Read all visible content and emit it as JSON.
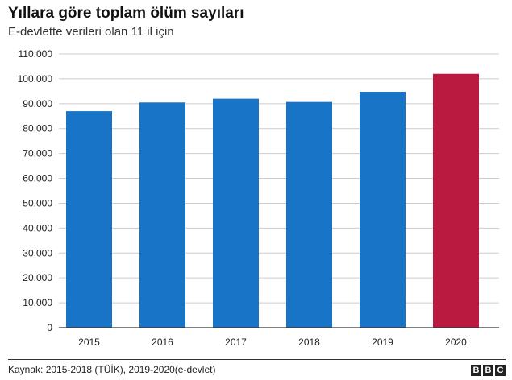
{
  "header": {
    "title": "Yıllara göre toplam ölüm sayıları",
    "subtitle": "E-devlette verileri olan 11 il için"
  },
  "footer": {
    "source": "Kaynak: 2015-2018 (TÜİK), 2019-2020(e-devlet)",
    "logo_letters": [
      "B",
      "B",
      "C"
    ]
  },
  "colors": {
    "default_bar": "#1874c6",
    "highlight_bar": "#bb1a40",
    "gridline": "#cccccc",
    "axis": "#333333"
  },
  "chart_data": {
    "type": "bar",
    "title": "Yıllara göre toplam ölüm sayıları",
    "subtitle": "E-devlette verileri olan 11 il için",
    "categories": [
      "2015",
      "2016",
      "2017",
      "2018",
      "2019",
      "2020"
    ],
    "values": [
      87000,
      90500,
      92000,
      90700,
      94800,
      102000
    ],
    "highlight": [
      "2020"
    ],
    "xlabel": "",
    "ylabel": "",
    "ylim": [
      0,
      110000
    ],
    "yticks": [
      {
        "value": 0,
        "label": "0"
      },
      {
        "value": 10000,
        "label": "10.000"
      },
      {
        "value": 20000,
        "label": "20.000"
      },
      {
        "value": 30000,
        "label": "30.000"
      },
      {
        "value": 40000,
        "label": "40.000"
      },
      {
        "value": 50000,
        "label": "50.000"
      },
      {
        "value": 60000,
        "label": "60.000"
      },
      {
        "value": 70000,
        "label": "70.000"
      },
      {
        "value": 80000,
        "label": "80.000"
      },
      {
        "value": 90000,
        "label": "90.000"
      },
      {
        "value": 100000,
        "label": "100.000"
      },
      {
        "value": 110000,
        "label": "110.000"
      }
    ],
    "grid": true,
    "legend": "none"
  }
}
